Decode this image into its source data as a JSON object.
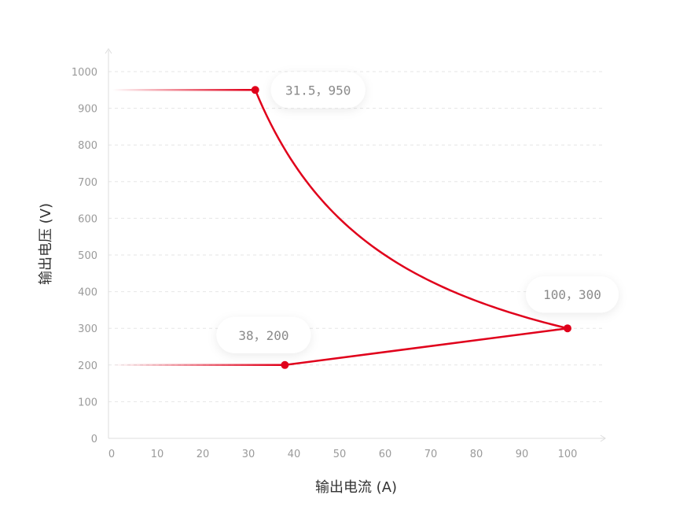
{
  "chart_data": {
    "type": "line",
    "title": "",
    "xlabel": "输出电流 (A)",
    "ylabel": "输出电压 (V)",
    "xlim": [
      0,
      110
    ],
    "ylim": [
      0,
      1000
    ],
    "x_ticks": [
      0,
      10,
      20,
      30,
      40,
      50,
      60,
      70,
      80,
      90,
      100
    ],
    "y_ticks": [
      0,
      100,
      200,
      300,
      400,
      500,
      600,
      700,
      800,
      900,
      1000
    ],
    "grid": "horizontal dashed",
    "series": [
      {
        "color": "#e0001b",
        "upper_segment": [
          [
            0,
            950
          ],
          [
            31.5,
            950
          ]
        ],
        "constant_power_curve": [
          [
            31.5,
            950
          ],
          [
            100,
            300
          ]
        ],
        "lower_segment": [
          [
            0,
            200
          ],
          [
            38,
            200
          ]
        ],
        "rising_segment": [
          [
            38,
            200
          ],
          [
            100,
            300
          ]
        ]
      }
    ],
    "points": [
      {
        "x": 31.5,
        "y": 950,
        "label": "31.5，950"
      },
      {
        "x": 100,
        "y": 300,
        "label": "100，300"
      },
      {
        "x": 38,
        "y": 200,
        "label": "38，200"
      }
    ]
  },
  "colors": {
    "line": "#e0001b",
    "axis": "#dddddd",
    "grid": "#e6e6e6",
    "tick_text": "#9a9a9a",
    "label_text": "#8a8a8a",
    "title_text": "#333333"
  }
}
